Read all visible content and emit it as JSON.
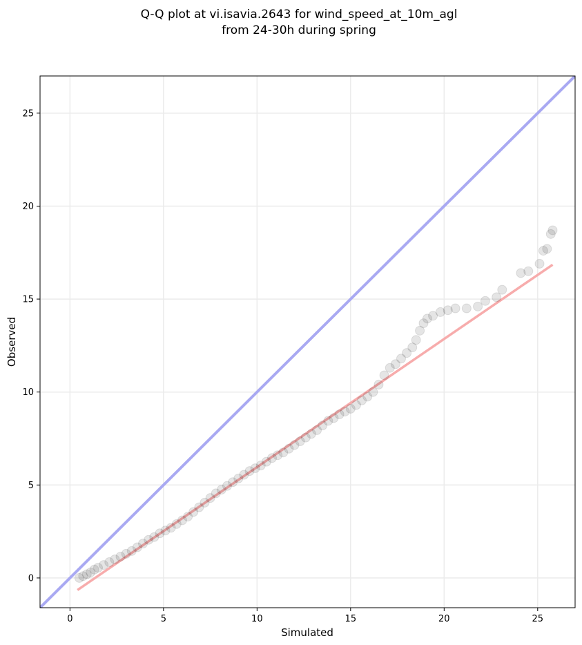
{
  "chart_data": {
    "type": "scatter",
    "title_lines": [
      "Q-Q plot at vi.isavia.2643 for wind_speed_at_10m_agl",
      "from 24-30h during spring"
    ],
    "xlabel": "Simulated",
    "ylabel": "Observed",
    "xlim": [
      -1.6,
      27.0
    ],
    "ylim": [
      -1.6,
      27.0
    ],
    "xticks": [
      0,
      5,
      10,
      15,
      20,
      25
    ],
    "yticks": [
      0,
      5,
      10,
      15,
      20,
      25
    ],
    "xtick_labels": [
      "0",
      "5",
      "10",
      "15",
      "20",
      "25"
    ],
    "ytick_labels": [
      "0",
      "5",
      "10",
      "15",
      "20",
      "25"
    ],
    "grid": true,
    "colors": {
      "identity_line": "#a9a9f2",
      "fit_line": "#f7a8a8",
      "points": "#000000",
      "grid": "#ebebeb"
    },
    "identity_line": {
      "slope": 1,
      "intercept": 0
    },
    "fit_line": {
      "x": [
        0.4,
        25.8
      ],
      "y": [
        -0.65,
        16.85
      ]
    },
    "points": [
      [
        0.5,
        0.0
      ],
      [
        0.7,
        0.1
      ],
      [
        0.9,
        0.2
      ],
      [
        1.1,
        0.3
      ],
      [
        1.3,
        0.45
      ],
      [
        1.5,
        0.55
      ],
      [
        1.8,
        0.7
      ],
      [
        2.1,
        0.85
      ],
      [
        2.4,
        1.0
      ],
      [
        2.7,
        1.15
      ],
      [
        3.0,
        1.3
      ],
      [
        3.3,
        1.45
      ],
      [
        3.6,
        1.65
      ],
      [
        3.9,
        1.85
      ],
      [
        4.2,
        2.05
      ],
      [
        4.5,
        2.2
      ],
      [
        4.8,
        2.4
      ],
      [
        5.1,
        2.55
      ],
      [
        5.4,
        2.7
      ],
      [
        5.7,
        2.9
      ],
      [
        6.0,
        3.1
      ],
      [
        6.3,
        3.3
      ],
      [
        6.6,
        3.55
      ],
      [
        6.9,
        3.8
      ],
      [
        7.2,
        4.05
      ],
      [
        7.5,
        4.3
      ],
      [
        7.8,
        4.55
      ],
      [
        8.1,
        4.75
      ],
      [
        8.4,
        4.95
      ],
      [
        8.7,
        5.15
      ],
      [
        9.0,
        5.35
      ],
      [
        9.3,
        5.55
      ],
      [
        9.6,
        5.75
      ],
      [
        9.9,
        5.9
      ],
      [
        10.2,
        6.05
      ],
      [
        10.5,
        6.25
      ],
      [
        10.8,
        6.45
      ],
      [
        11.1,
        6.6
      ],
      [
        11.4,
        6.75
      ],
      [
        11.7,
        6.95
      ],
      [
        12.0,
        7.15
      ],
      [
        12.3,
        7.35
      ],
      [
        12.6,
        7.55
      ],
      [
        12.9,
        7.75
      ],
      [
        13.2,
        7.95
      ],
      [
        13.5,
        8.2
      ],
      [
        13.8,
        8.45
      ],
      [
        14.1,
        8.6
      ],
      [
        14.4,
        8.8
      ],
      [
        14.7,
        8.95
      ],
      [
        15.0,
        9.1
      ],
      [
        15.3,
        9.3
      ],
      [
        15.6,
        9.55
      ],
      [
        15.9,
        9.75
      ],
      [
        16.2,
        10.0
      ],
      [
        16.5,
        10.4
      ],
      [
        16.8,
        10.9
      ],
      [
        17.1,
        11.3
      ],
      [
        17.4,
        11.5
      ],
      [
        17.7,
        11.8
      ],
      [
        18.0,
        12.1
      ],
      [
        18.3,
        12.4
      ],
      [
        18.5,
        12.8
      ],
      [
        18.7,
        13.3
      ],
      [
        18.9,
        13.7
      ],
      [
        19.1,
        13.95
      ],
      [
        19.4,
        14.1
      ],
      [
        19.8,
        14.3
      ],
      [
        20.2,
        14.4
      ],
      [
        20.6,
        14.5
      ],
      [
        21.2,
        14.5
      ],
      [
        21.8,
        14.6
      ],
      [
        22.2,
        14.9
      ],
      [
        22.8,
        15.1
      ],
      [
        23.1,
        15.5
      ],
      [
        24.1,
        16.4
      ],
      [
        24.5,
        16.5
      ],
      [
        25.1,
        16.9
      ],
      [
        25.3,
        17.6
      ],
      [
        25.5,
        17.7
      ],
      [
        25.7,
        18.5
      ],
      [
        25.8,
        18.7
      ]
    ]
  }
}
